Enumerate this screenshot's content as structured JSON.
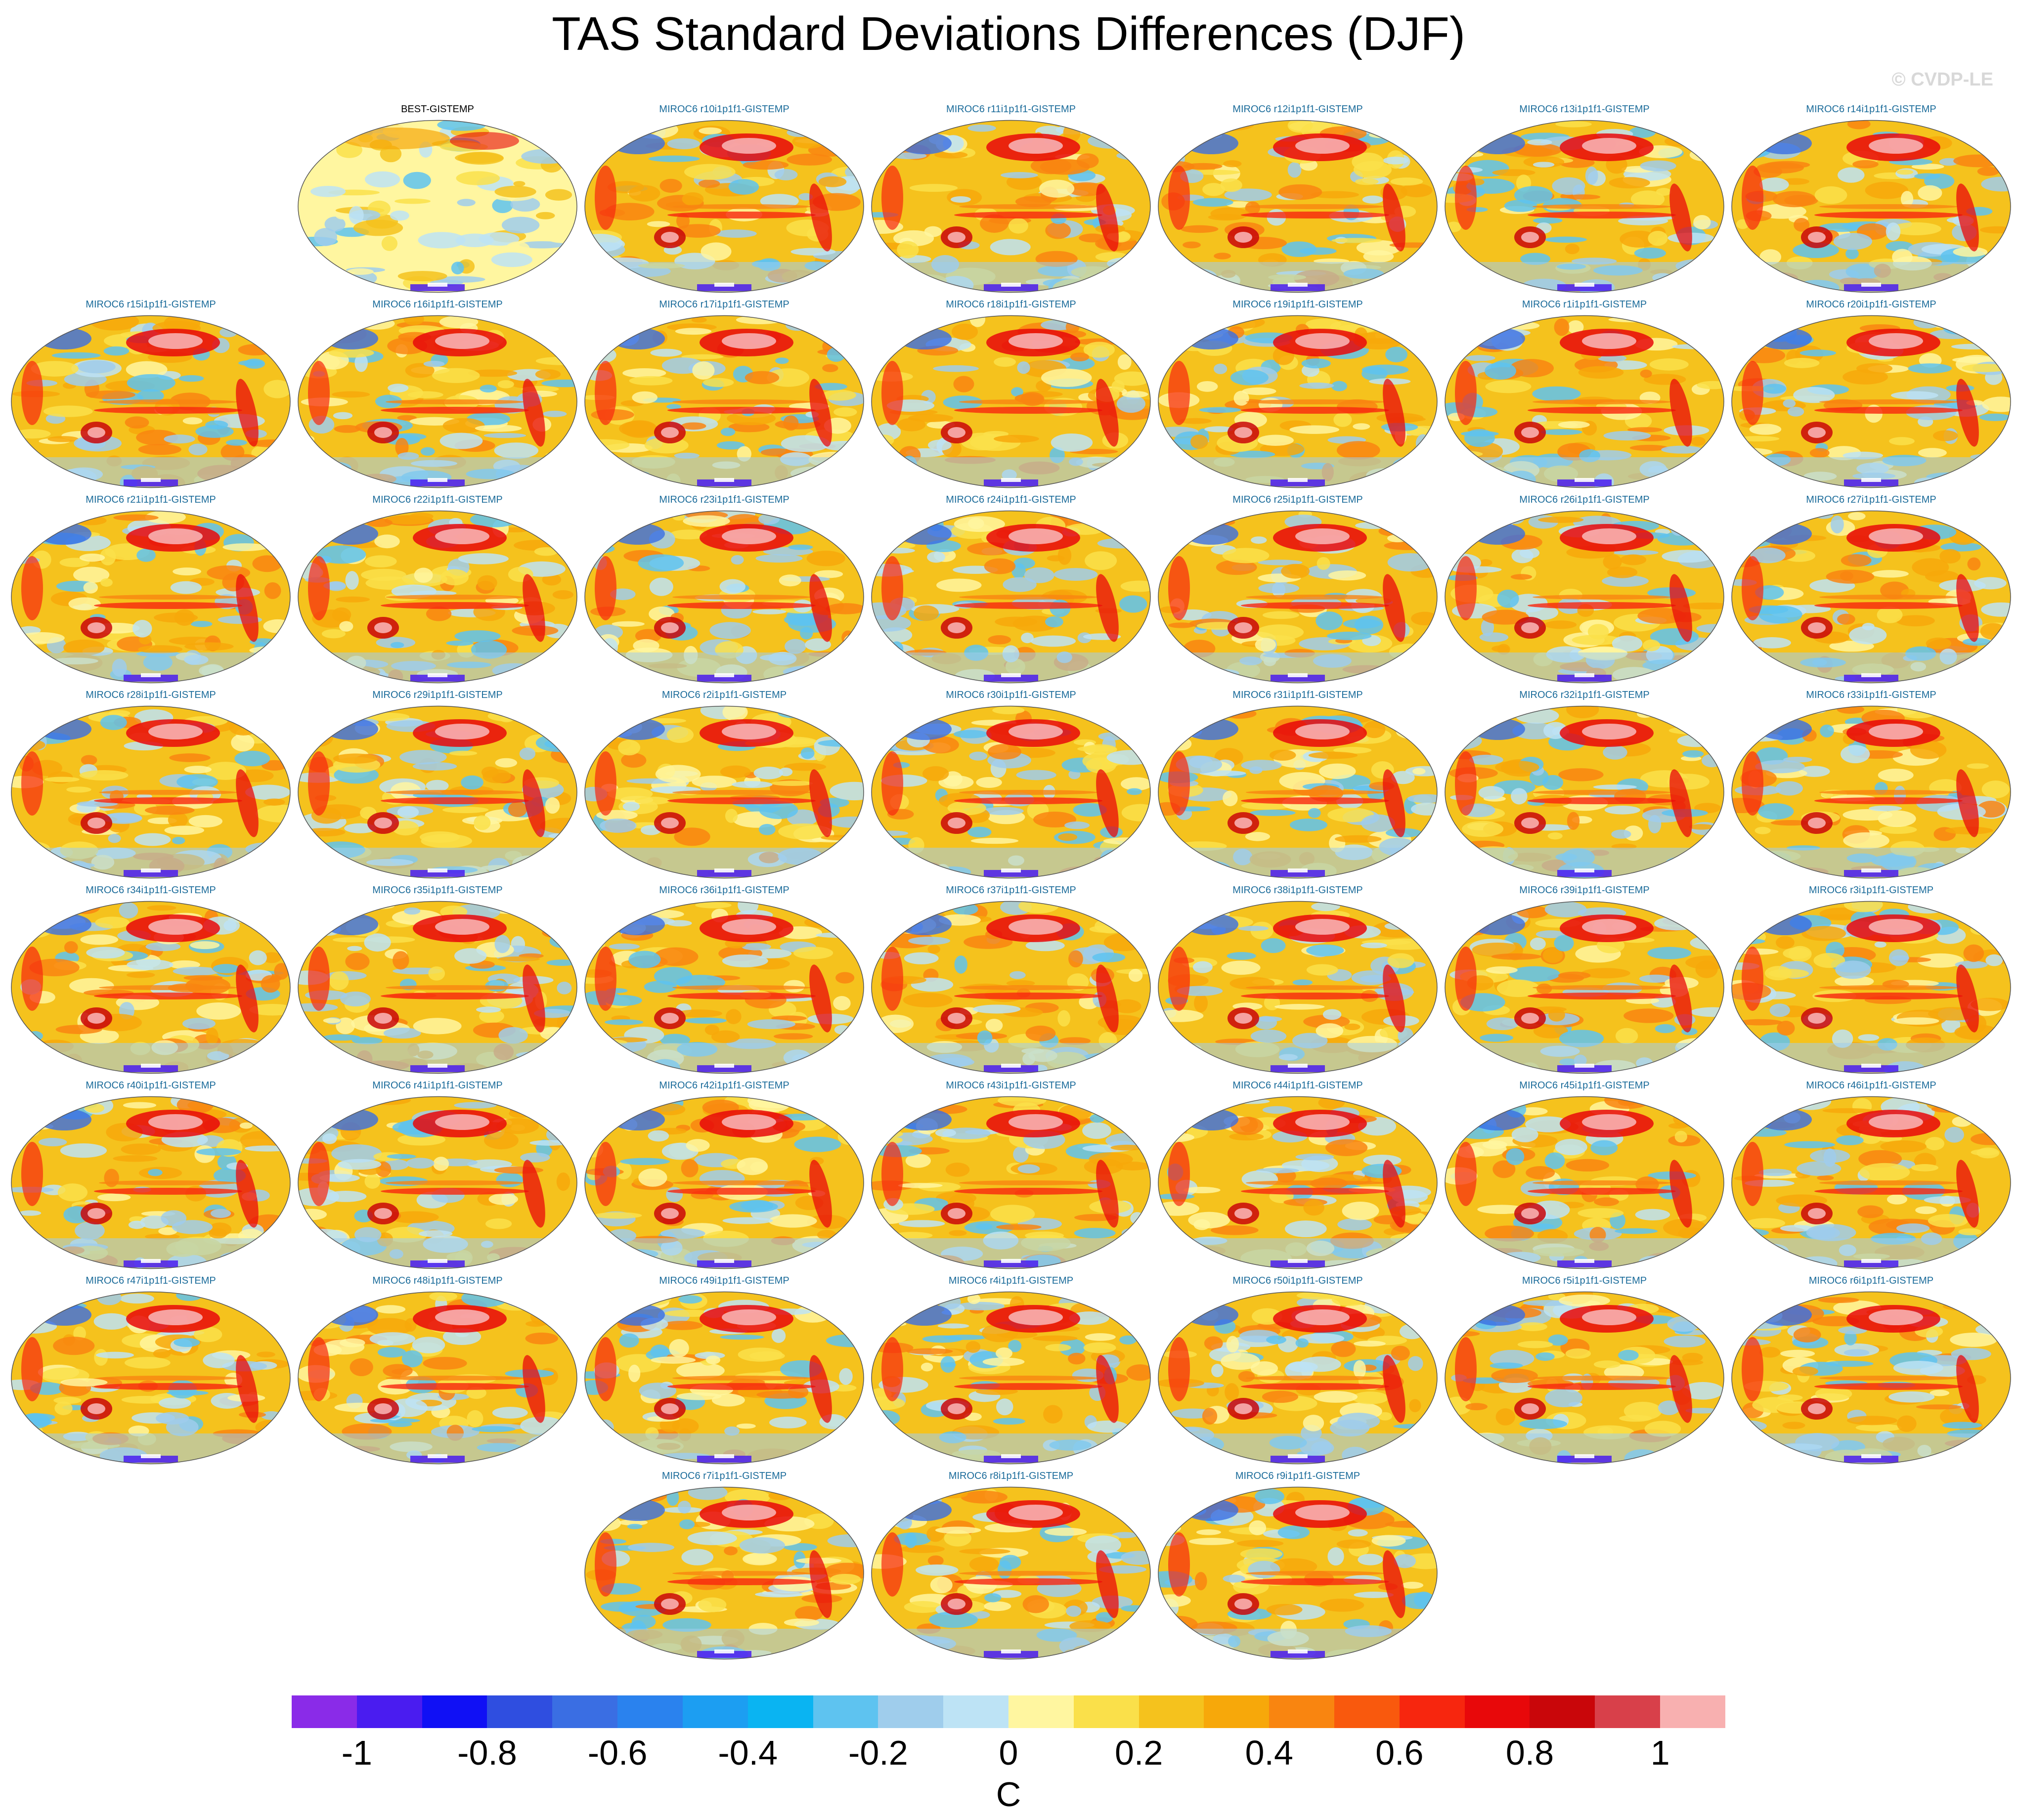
{
  "title": "TAS Standard Deviations Differences (DJF)",
  "copyright": "© CVDP-LE",
  "units": "C",
  "colorbar": {
    "colors": [
      "#8a2be8",
      "#4a1cf0",
      "#1010f5",
      "#2f4ee0",
      "#3a6ee3",
      "#2a82ee",
      "#1c9ef2",
      "#0ab4f2",
      "#5ec3f0",
      "#9fcdec",
      "#bde3f5",
      "#fff6a0",
      "#fae04a",
      "#f5c21d",
      "#f7a80a",
      "#f98510",
      "#f9590d",
      "#f7260e",
      "#e8080a",
      "#c9060a",
      "#d8404a",
      "#f8b0b0"
    ],
    "ticks": [
      "-1",
      "-0.8",
      "-0.6",
      "-0.4",
      "-0.2",
      "0",
      "0.2",
      "0.4",
      "0.6",
      "0.8",
      "1"
    ]
  },
  "panels": [
    {
      "label": "BEST-GISTEMP",
      "observational": true
    },
    {
      "label": "MIROC6 r10i1p1f1-GISTEMP"
    },
    {
      "label": "MIROC6 r11i1p1f1-GISTEMP"
    },
    {
      "label": "MIROC6 r12i1p1f1-GISTEMP"
    },
    {
      "label": "MIROC6 r13i1p1f1-GISTEMP"
    },
    {
      "label": "MIROC6 r14i1p1f1-GISTEMP"
    },
    {
      "label": "MIROC6 r15i1p1f1-GISTEMP"
    },
    {
      "label": "MIROC6 r16i1p1f1-GISTEMP"
    },
    {
      "label": "MIROC6 r17i1p1f1-GISTEMP"
    },
    {
      "label": "MIROC6 r18i1p1f1-GISTEMP"
    },
    {
      "label": "MIROC6 r19i1p1f1-GISTEMP"
    },
    {
      "label": "MIROC6 r1i1p1f1-GISTEMP"
    },
    {
      "label": "MIROC6 r20i1p1f1-GISTEMP"
    },
    {
      "label": "MIROC6 r21i1p1f1-GISTEMP"
    },
    {
      "label": "MIROC6 r22i1p1f1-GISTEMP"
    },
    {
      "label": "MIROC6 r23i1p1f1-GISTEMP"
    },
    {
      "label": "MIROC6 r24i1p1f1-GISTEMP"
    },
    {
      "label": "MIROC6 r25i1p1f1-GISTEMP"
    },
    {
      "label": "MIROC6 r26i1p1f1-GISTEMP"
    },
    {
      "label": "MIROC6 r27i1p1f1-GISTEMP"
    },
    {
      "label": "MIROC6 r28i1p1f1-GISTEMP"
    },
    {
      "label": "MIROC6 r29i1p1f1-GISTEMP"
    },
    {
      "label": "MIROC6 r2i1p1f1-GISTEMP"
    },
    {
      "label": "MIROC6 r30i1p1f1-GISTEMP"
    },
    {
      "label": "MIROC6 r31i1p1f1-GISTEMP"
    },
    {
      "label": "MIROC6 r32i1p1f1-GISTEMP"
    },
    {
      "label": "MIROC6 r33i1p1f1-GISTEMP"
    },
    {
      "label": "MIROC6 r34i1p1f1-GISTEMP"
    },
    {
      "label": "MIROC6 r35i1p1f1-GISTEMP"
    },
    {
      "label": "MIROC6 r36i1p1f1-GISTEMP"
    },
    {
      "label": "MIROC6 r37i1p1f1-GISTEMP"
    },
    {
      "label": "MIROC6 r38i1p1f1-GISTEMP"
    },
    {
      "label": "MIROC6 r39i1p1f1-GISTEMP"
    },
    {
      "label": "MIROC6 r3i1p1f1-GISTEMP"
    },
    {
      "label": "MIROC6 r40i1p1f1-GISTEMP"
    },
    {
      "label": "MIROC6 r41i1p1f1-GISTEMP"
    },
    {
      "label": "MIROC6 r42i1p1f1-GISTEMP"
    },
    {
      "label": "MIROC6 r43i1p1f1-GISTEMP"
    },
    {
      "label": "MIROC6 r44i1p1f1-GISTEMP"
    },
    {
      "label": "MIROC6 r45i1p1f1-GISTEMP"
    },
    {
      "label": "MIROC6 r46i1p1f1-GISTEMP"
    },
    {
      "label": "MIROC6 r47i1p1f1-GISTEMP"
    },
    {
      "label": "MIROC6 r48i1p1f1-GISTEMP"
    },
    {
      "label": "MIROC6 r49i1p1f1-GISTEMP"
    },
    {
      "label": "MIROC6 r4i1p1f1-GISTEMP"
    },
    {
      "label": "MIROC6 r50i1p1f1-GISTEMP"
    },
    {
      "label": "MIROC6 r5i1p1f1-GISTEMP"
    },
    {
      "label": "MIROC6 r6i1p1f1-GISTEMP"
    },
    {
      "label": "MIROC6 r7i1p1f1-GISTEMP"
    },
    {
      "label": "MIROC6 r8i1p1f1-GISTEMP"
    },
    {
      "label": "MIROC6 r9i1p1f1-GISTEMP"
    }
  ]
}
